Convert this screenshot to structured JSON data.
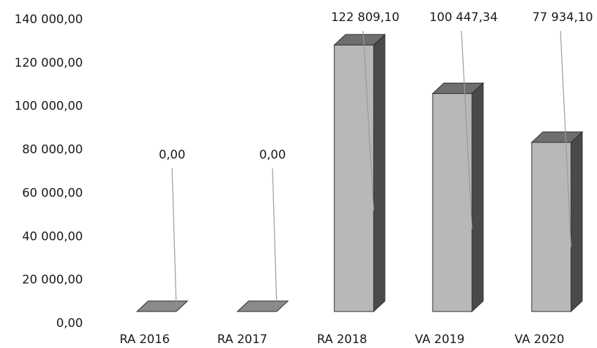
{
  "chart_data": {
    "type": "bar",
    "three_d": true,
    "categories": [
      "RA 2016",
      "RA 2017",
      "RA 2018",
      "VA 2019",
      "VA 2020"
    ],
    "values": [
      0,
      0,
      122809.1,
      100447.34,
      77934.1
    ],
    "data_labels": [
      "0,00",
      "0,00",
      "122 809,10",
      "100 447,34",
      "77 934,10"
    ],
    "yticks": [
      "0,00",
      "20 000,00",
      "40 000,00",
      "60 000,00",
      "80 000,00",
      "100 000,00",
      "120 000,00",
      "140 000,00"
    ],
    "ylim": [
      0,
      140000
    ],
    "title": "",
    "xlabel": "",
    "ylabel": "",
    "legend": "none",
    "grid": false,
    "colors": {
      "front": "#b8b8b8",
      "side": "#4a4a4a",
      "top": "#6e6e6e",
      "leader": "#9a9a9a"
    }
  }
}
